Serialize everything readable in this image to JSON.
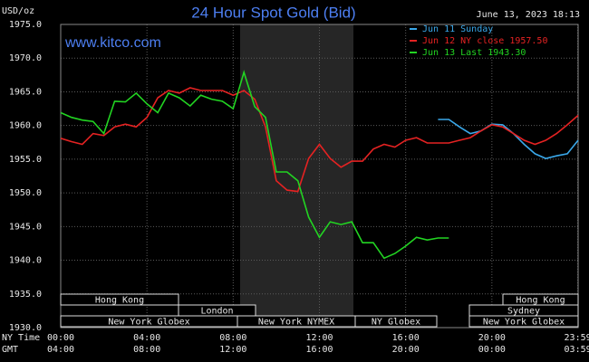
{
  "chart_data": {
    "type": "line",
    "title": "24 Hour Spot Gold (Bid)",
    "unit": "USD/oz",
    "timestamp": "June 13, 2023 18:13",
    "website": "www.kitco.com",
    "xlabel": "NY Time",
    "xlabel2": "GMT",
    "x": [
      0,
      0.5,
      1,
      1.5,
      2,
      2.5,
      3,
      3.5,
      4,
      4.5,
      5,
      5.5,
      6,
      6.5,
      7,
      7.5,
      8,
      8.5,
      9,
      9.5,
      10,
      10.5,
      11,
      11.5,
      12,
      12.5,
      13,
      13.5,
      14,
      14.5,
      15,
      15.5,
      16,
      16.5,
      17,
      17.5,
      18,
      18.5,
      19,
      19.5,
      20,
      20.5,
      21,
      21.5,
      22,
      22.5,
      23,
      23.5,
      24
    ],
    "xlim": [
      0,
      24
    ],
    "xticks": [
      {
        "value": 0,
        "label": "00:00"
      },
      {
        "value": 4,
        "label": "04:00"
      },
      {
        "value": 8,
        "label": "08:00"
      },
      {
        "value": 12,
        "label": "12:00"
      },
      {
        "value": 16,
        "label": "16:00"
      },
      {
        "value": 20,
        "label": "20:00"
      },
      {
        "value": 23.983,
        "label": "23:59"
      }
    ],
    "gmt_labels": [
      "04:00",
      "08:00",
      "12:00",
      "16:00",
      "20:00",
      "00:00",
      "03:59"
    ],
    "ylim": [
      1930,
      1975
    ],
    "yticks": [
      {
        "value": 1930,
        "label": "1930.0"
      },
      {
        "value": 1935,
        "label": "1935.0"
      },
      {
        "value": 1940,
        "label": "1940.0"
      },
      {
        "value": 1945,
        "label": "1945.0"
      },
      {
        "value": 1950,
        "label": "1950.0"
      },
      {
        "value": 1955,
        "label": "1955.0"
      },
      {
        "value": 1960,
        "label": "1960.0"
      },
      {
        "value": 1965,
        "label": "1965.0"
      },
      {
        "value": 1970,
        "label": "1970.0"
      },
      {
        "value": 1975,
        "label": "1975.0"
      }
    ],
    "grid": true,
    "series": [
      {
        "name": "Jun 11 Sunday",
        "color": "#3aa8ea",
        "values": [
          null,
          null,
          null,
          null,
          null,
          null,
          null,
          null,
          null,
          null,
          null,
          null,
          null,
          null,
          null,
          null,
          null,
          null,
          null,
          null,
          null,
          null,
          null,
          null,
          null,
          null,
          null,
          null,
          null,
          null,
          null,
          null,
          null,
          null,
          null,
          1960.9,
          1960.9,
          1959.8,
          1958.8,
          1959.2,
          1960.2,
          1960.1,
          1958.8,
          1957.2,
          1955.8,
          1955.1,
          1955.5,
          1955.8,
          1957.8
        ]
      },
      {
        "name": "Jun 12 NY close 1957.50",
        "color": "#e52222",
        "values": [
          1958.1,
          1957.6,
          1957.2,
          1958.8,
          1958.5,
          1959.8,
          1960.2,
          1959.8,
          1961.2,
          1964.1,
          1965.2,
          1964.8,
          1965.6,
          1965.2,
          1965.2,
          1965.2,
          1964.5,
          1965.2,
          1963.9,
          1959.8,
          1951.8,
          1950.4,
          1950.2,
          1955.1,
          1957.2,
          1955.1,
          1953.8,
          1954.7,
          1954.7,
          1956.5,
          1957.2,
          1956.8,
          1957.8,
          1958.2,
          1957.4,
          1957.4,
          1957.4,
          1957.8,
          1958.2,
          1959.2,
          1960.1,
          1959.8,
          1958.8,
          1957.8,
          1957.2,
          1957.8,
          1958.8,
          1960.1,
          1961.5
        ]
      },
      {
        "name": "Jun 13 Last 1943.30",
        "color": "#22d422",
        "values": [
          1961.9,
          1961.2,
          1960.8,
          1960.6,
          1958.8,
          1963.6,
          1963.5,
          1964.8,
          1963.2,
          1961.9,
          1964.8,
          1964.1,
          1962.9,
          1964.5,
          1963.9,
          1963.6,
          1962.5,
          1967.9,
          1962.8,
          1961.2,
          1953.1,
          1953.1,
          1951.8,
          1946.4,
          1943.4,
          1945.7,
          1945.3,
          1945.7,
          1942.6,
          1942.6,
          1940.3,
          1941.0,
          1942.1,
          1943.4,
          1943.0,
          1943.3,
          1943.3,
          null,
          null,
          null,
          null,
          null,
          null,
          null,
          null,
          null,
          null,
          null,
          null
        ]
      }
    ],
    "sessions": [
      "Hong Kong",
      "London",
      "New York Globex",
      "New York NYMEX",
      "NY Globex",
      "Sydney",
      "Hong Kong",
      "New York Globex"
    ]
  }
}
